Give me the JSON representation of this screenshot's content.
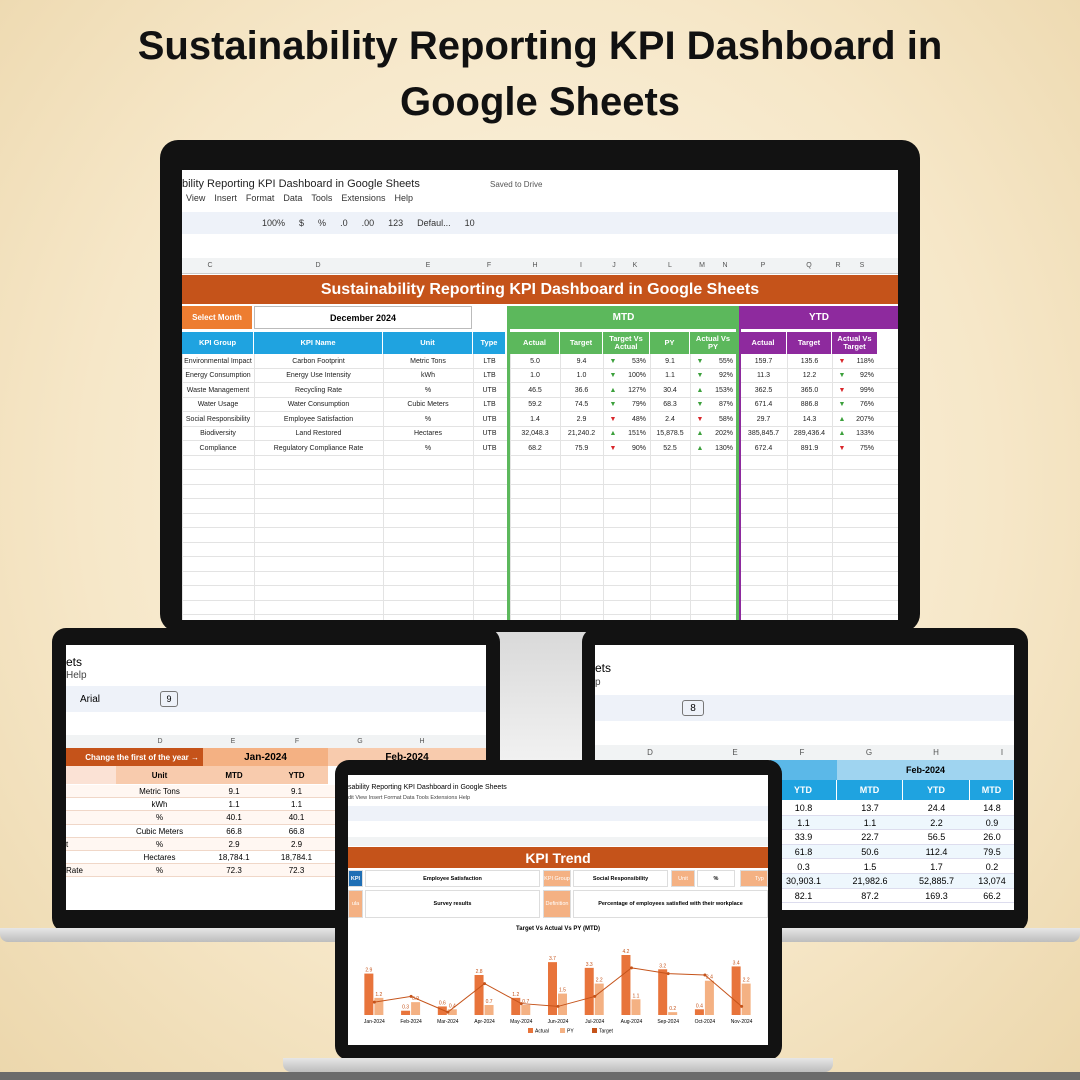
{
  "title_lines": [
    "Sustainability Reporting KPI Dashboard in",
    "Google Sheets"
  ],
  "main": {
    "doc_title": "bility Reporting KPI Dashboard in Google Sheets",
    "saved": "Saved to Drive",
    "menu": [
      "View",
      "Insert",
      "Format",
      "Data",
      "Tools",
      "Extensions",
      "Help"
    ],
    "toolbar": [
      "100%",
      "$",
      "%",
      ".0",
      ".00",
      "123",
      "Defaul...",
      "10"
    ],
    "columns": [
      "C",
      "D",
      "E",
      "F",
      "H",
      "I",
      "J",
      "K",
      "L",
      "M",
      "N",
      "P",
      "Q",
      "R",
      "S"
    ],
    "banner": "Sustainability Reporting KPI Dashboard in Google Sheets",
    "select_month": "Select Month",
    "month": "December 2024",
    "mtd": "MTD",
    "ytd": "YTD",
    "headers": [
      "KPI Group",
      "KPI Name",
      "Unit",
      "Type",
      "Actual",
      "Target",
      "Target Vs Actual",
      "PY",
      "Actual Vs PY",
      "Actual",
      "Target",
      "Actual Vs Target"
    ],
    "rows": [
      [
        "Environmental Impact",
        "Carbon Footprint",
        "Metric Tons",
        "LTB",
        "5.0",
        "9.4",
        {
          "arrow": "▼",
          "pct": "53%",
          "color": "#3ca03c"
        },
        "9.1",
        {
          "arrow": "▼",
          "pct": "55%",
          "color": "#3ca03c"
        },
        "159.7",
        "135.6",
        {
          "arrow": "▼",
          "pct": "118%",
          "color": "#d9262a"
        }
      ],
      [
        "Energy Consumption",
        "Energy Use Intensity",
        "kWh",
        "LTB",
        "1.0",
        "1.0",
        {
          "arrow": "▼",
          "pct": "100%",
          "color": "#3ca03c"
        },
        "1.1",
        {
          "arrow": "▼",
          "pct": "92%",
          "color": "#3ca03c"
        },
        "11.3",
        "12.2",
        {
          "arrow": "▼",
          "pct": "92%",
          "color": "#3ca03c"
        }
      ],
      [
        "Waste Management",
        "Recycling Rate",
        "%",
        "UTB",
        "46.5",
        "36.6",
        {
          "arrow": "▲",
          "pct": "127%",
          "color": "#3ca03c"
        },
        "30.4",
        {
          "arrow": "▲",
          "pct": "153%",
          "color": "#3ca03c"
        },
        "362.5",
        "365.0",
        {
          "arrow": "▼",
          "pct": "99%",
          "color": "#d9262a"
        }
      ],
      [
        "Water Usage",
        "Water Consumption",
        "Cubic Meters",
        "LTB",
        "59.2",
        "74.5",
        {
          "arrow": "▼",
          "pct": "79%",
          "color": "#3ca03c"
        },
        "68.3",
        {
          "arrow": "▼",
          "pct": "87%",
          "color": "#3ca03c"
        },
        "671.4",
        "886.8",
        {
          "arrow": "▼",
          "pct": "76%",
          "color": "#3ca03c"
        }
      ],
      [
        "Social Responsibility",
        "Employee Satisfaction",
        "%",
        "UTB",
        "1.4",
        "2.9",
        {
          "arrow": "▼",
          "pct": "48%",
          "color": "#d9262a"
        },
        "2.4",
        {
          "arrow": "▼",
          "pct": "58%",
          "color": "#d9262a"
        },
        "29.7",
        "14.3",
        {
          "arrow": "▲",
          "pct": "207%",
          "color": "#3ca03c"
        }
      ],
      [
        "Biodiversity",
        "Land Restored",
        "Hectares",
        "UTB",
        "32,048.3",
        "21,240.2",
        {
          "arrow": "▲",
          "pct": "151%",
          "color": "#3ca03c"
        },
        "15,878.5",
        {
          "arrow": "▲",
          "pct": "202%",
          "color": "#3ca03c"
        },
        "385,845.7",
        "289,436.4",
        {
          "arrow": "▲",
          "pct": "133%",
          "color": "#3ca03c"
        }
      ],
      [
        "Compliance",
        "Regulatory Compliance Rate",
        "%",
        "UTB",
        "68.2",
        "75.9",
        {
          "arrow": "▼",
          "pct": "90%",
          "color": "#d9262a"
        },
        "52.5",
        {
          "arrow": "▲",
          "pct": "130%",
          "color": "#3ca03c"
        },
        "672.4",
        "891.9",
        {
          "arrow": "▼",
          "pct": "75%",
          "color": "#d9262a"
        }
      ]
    ]
  },
  "left": {
    "doc_title": "ets",
    "menu": "Help",
    "font": "Arial",
    "size": "9",
    "columns": [
      "D",
      "E",
      "F",
      "G",
      "H"
    ],
    "note": "Change the first of the year →",
    "months": [
      "Jan-2024",
      "Feb-2024"
    ],
    "headers": [
      "Unit",
      "MTD",
      "YTD"
    ],
    "rows": [
      [
        "Metric Tons",
        "9.1",
        "9.1"
      ],
      [
        "kWh",
        "1.1",
        "1.1"
      ],
      [
        "%",
        "40.1",
        "40.1"
      ],
      [
        "Cubic Meters",
        "66.8",
        "66.8"
      ],
      [
        "%",
        "2.9",
        "2.9"
      ],
      [
        "Hectares",
        "18,784.1",
        "18,784.1"
      ],
      [
        "%",
        "72.3",
        "72.3"
      ]
    ],
    "fragments": [
      "t",
      "Rate"
    ]
  },
  "right": {
    "doc_title": "ets",
    "menu": "p",
    "size": "8",
    "columns": [
      "D",
      "E",
      "F",
      "G",
      "H",
      "I"
    ],
    "month": "Feb-2024",
    "headers": [
      "YTD",
      "MTD",
      "YTD",
      "MTD"
    ],
    "rows": [
      [
        "10.8",
        "13.7",
        "24.4",
        "14.8"
      ],
      [
        "1.1",
        "1.1",
        "2.2",
        "0.9"
      ],
      [
        "33.9",
        "22.7",
        "56.5",
        "26.0"
      ],
      [
        "61.8",
        "50.6",
        "112.4",
        "79.5"
      ],
      [
        "0.3",
        "1.5",
        "1.7",
        "0.2"
      ],
      [
        "30,903.1",
        "21,982.6",
        "52,885.7",
        "13,074"
      ],
      [
        "82.1",
        "87.2",
        "169.3",
        "66.2"
      ]
    ]
  },
  "trend": {
    "doc_title": "sability Reporting KPI Dashboard in Google Sheets",
    "menu": "dit   View   Insert   Format   Data   Tools   Extensions   Help",
    "banner": "KPI Trend",
    "kpi_label": "KPI",
    "kpi": "Employee Satisfaction",
    "group_label": "KPI Group",
    "group": "Social Responsibility",
    "unit_label": "Unit",
    "unit": "%",
    "type_label": "Typ",
    "formula_label": "ula",
    "formula": "Survey results",
    "definition_label": "Definition",
    "definition": "Percentage of employees satisfied with their workplace"
  },
  "chart_data": {
    "type": "bar",
    "title": "Target Vs Actual Vs PY (MTD)",
    "categories": [
      "Jan-2024",
      "Feb-2024",
      "Mar-2024",
      "Apr-2024",
      "May-2024",
      "Jun-2024",
      "Jul-2024",
      "Aug-2024",
      "Sep-2024",
      "Oct-2024",
      "Nov-2024"
    ],
    "series": [
      {
        "name": "Actual",
        "color": "#e8743b",
        "values": [
          2.9,
          0.3,
          0.6,
          2.8,
          1.2,
          3.7,
          3.3,
          4.2,
          3.2,
          0.4,
          3.4
        ]
      },
      {
        "name": "PY",
        "color": "#f4b183",
        "values": [
          1.2,
          0.9,
          0.4,
          0.7,
          0.7,
          1.5,
          2.2,
          1.1,
          0.2,
          2.4,
          2.2
        ]
      },
      {
        "name": "Target",
        "color": "#c5531a",
        "values": [
          0.9,
          1.3,
          0.2,
          2.2,
          0.8,
          0.6,
          1.3,
          3.3,
          2.9,
          2.8,
          0.6
        ]
      }
    ]
  }
}
